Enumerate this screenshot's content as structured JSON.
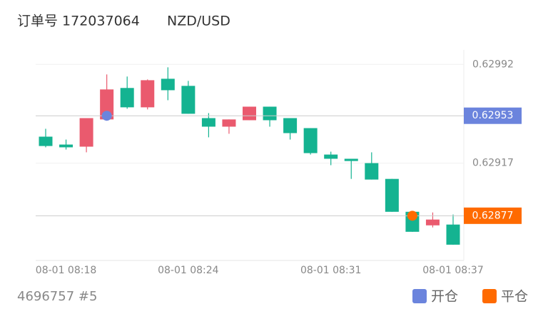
{
  "chart_data": {
    "type": "candlestick",
    "order_label": "订单号 172037064",
    "symbol": "NZD/USD",
    "footer": "4696757 #5",
    "categories": [
      null,
      "08-01 08:18",
      null,
      null,
      null,
      null,
      null,
      "08-01 08:24",
      null,
      null,
      null,
      null,
      null,
      null,
      "08-01 08:31",
      null,
      null,
      null,
      null,
      null,
      "08-01 08:37"
    ],
    "open": [
      0.629371,
      0.629311,
      0.629295,
      0.629502,
      0.629741,
      0.629594,
      0.629811,
      0.629757,
      0.629512,
      0.629447,
      0.629496,
      0.629599,
      0.629512,
      0.629436,
      0.629235,
      0.629203,
      0.62917,
      0.62905,
      0.6288,
      0.628697,
      0.628703
    ],
    "high": [
      0.629431,
      0.629349,
      0.629512,
      0.629844,
      0.629828,
      0.629806,
      0.629898,
      0.629795,
      0.62955,
      0.629502,
      0.629599,
      0.629599,
      0.629512,
      0.629436,
      0.629257,
      0.629203,
      0.629252,
      0.62905,
      0.6288,
      0.628795,
      0.628779
    ],
    "low": [
      0.62929,
      0.629273,
      0.629252,
      0.629502,
      0.629583,
      0.629578,
      0.629648,
      0.629545,
      0.629366,
      0.629393,
      0.629496,
      0.629447,
      0.629349,
      0.629235,
      0.629154,
      0.62905,
      0.629045,
      0.6288,
      0.628648,
      0.628681,
      0.62855
    ],
    "close": [
      0.6293,
      0.62929,
      0.629512,
      0.62973,
      0.629594,
      0.6298,
      0.629724,
      0.629545,
      0.629447,
      0.629502,
      0.629599,
      0.629496,
      0.629398,
      0.629246,
      0.629203,
      0.629186,
      0.629045,
      0.6288,
      0.628648,
      0.628741,
      0.62855
    ],
    "up_color": "#ea5a6e",
    "down_color": "#14b391",
    "ylim": [
      0.62843,
      0.63003
    ],
    "yticks": [
      0.62917,
      0.62992
    ],
    "grid": true,
    "markers": [
      {
        "name": "开仓",
        "value": 0.62953,
        "candle": 3,
        "color": "#6b84dd"
      },
      {
        "name": "平仓",
        "value": 0.62877,
        "candle": 18,
        "color": "#ff6a00"
      }
    ]
  }
}
